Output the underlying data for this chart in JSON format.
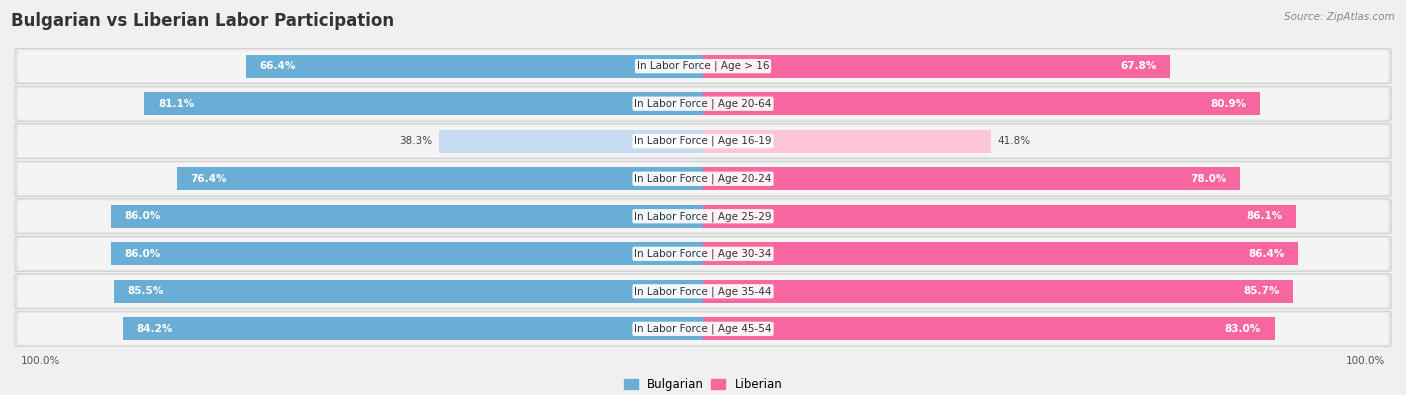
{
  "title": "Bulgarian vs Liberian Labor Participation",
  "source": "Source: ZipAtlas.com",
  "categories": [
    "In Labor Force | Age > 16",
    "In Labor Force | Age 20-64",
    "In Labor Force | Age 16-19",
    "In Labor Force | Age 20-24",
    "In Labor Force | Age 25-29",
    "In Labor Force | Age 30-34",
    "In Labor Force | Age 35-44",
    "In Labor Force | Age 45-54"
  ],
  "bulgarian_values": [
    66.4,
    81.1,
    38.3,
    76.4,
    86.0,
    86.0,
    85.5,
    84.2
  ],
  "liberian_values": [
    67.8,
    80.9,
    41.8,
    78.0,
    86.1,
    86.4,
    85.7,
    83.0
  ],
  "bulgarian_color": "#6aaed6",
  "liberian_color": "#f768a1",
  "bulgarian_color_light": "#c6dbef",
  "liberian_color_light": "#fcc5d8",
  "bg_color": "#f0f0f0",
  "row_bg_even": "#e8e8e8",
  "row_bg_odd": "#f5f5f5",
  "max_value": 100.0,
  "bar_height": 0.62,
  "threshold": 50,
  "title_fontsize": 12,
  "label_fontsize": 7.5,
  "value_fontsize": 7.5,
  "tick_fontsize": 7.5,
  "legend_fontsize": 8.5
}
